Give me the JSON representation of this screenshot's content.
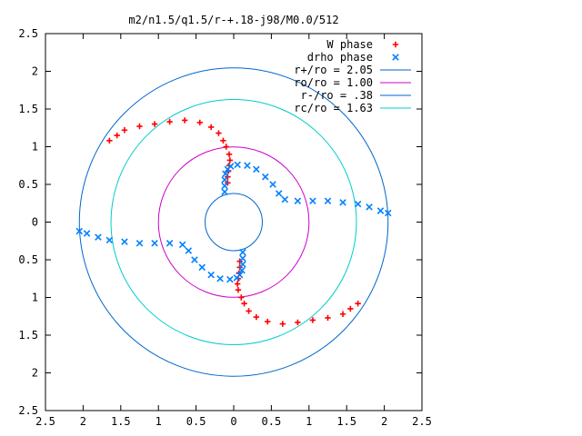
{
  "chart_data": {
    "type": "scatter",
    "title": "m2/n1.5/q1.5/r-+.18-j98/M0.0/512",
    "xlim": [
      -2.5,
      2.5
    ],
    "ylim": [
      -2.5,
      2.5
    ],
    "x_ticks": [
      -2.5,
      -2,
      -1.5,
      -1,
      -0.5,
      0,
      0.5,
      1,
      1.5,
      2,
      2.5
    ],
    "x_tick_labels": [
      "2.5",
      "2",
      "1.5",
      "1",
      "0.5",
      "0",
      "0.5",
      "1",
      "1.5",
      "2",
      "2.5"
    ],
    "y_ticks": [
      2.5,
      2,
      1.5,
      1,
      0.5,
      0,
      -0.5,
      -1,
      -1.5,
      -2,
      -2.5
    ],
    "y_tick_labels": [
      "2.5",
      "2",
      "1.5",
      "1",
      "0.5",
      "0",
      "0.5",
      "1",
      "1.5",
      "2",
      "2.5"
    ],
    "grid": false,
    "legend_position": "top-right",
    "series": [
      {
        "name": "W phase",
        "marker": "plus",
        "color": "#ff0000",
        "points": [
          [
            -0.08,
            0.52
          ],
          [
            -0.08,
            0.6
          ],
          [
            -0.07,
            0.68
          ],
          [
            -0.06,
            0.75
          ],
          [
            -0.05,
            0.82
          ],
          [
            -0.06,
            0.9
          ],
          [
            -0.1,
            1.0
          ],
          [
            -0.14,
            1.08
          ],
          [
            -0.2,
            1.18
          ],
          [
            -0.3,
            1.26
          ],
          [
            -0.45,
            1.32
          ],
          [
            -0.65,
            1.35
          ],
          [
            -0.85,
            1.33
          ],
          [
            -1.05,
            1.3
          ],
          [
            -1.25,
            1.27
          ],
          [
            -1.45,
            1.22
          ],
          [
            -1.55,
            1.15
          ],
          [
            -1.65,
            1.08
          ],
          [
            0.08,
            -0.52
          ],
          [
            0.08,
            -0.6
          ],
          [
            0.07,
            -0.68
          ],
          [
            0.06,
            -0.75
          ],
          [
            0.05,
            -0.82
          ],
          [
            0.06,
            -0.9
          ],
          [
            0.1,
            -1.0
          ],
          [
            0.14,
            -1.08
          ],
          [
            0.2,
            -1.18
          ],
          [
            0.3,
            -1.26
          ],
          [
            0.45,
            -1.32
          ],
          [
            0.65,
            -1.35
          ],
          [
            0.85,
            -1.33
          ],
          [
            1.05,
            -1.3
          ],
          [
            1.25,
            -1.27
          ],
          [
            1.45,
            -1.22
          ],
          [
            1.55,
            -1.15
          ],
          [
            1.65,
            -1.08
          ]
        ]
      },
      {
        "name": "drho phase",
        "marker": "cross",
        "color": "#0080ff",
        "points": [
          [
            -0.12,
            0.4
          ],
          [
            -0.12,
            0.48
          ],
          [
            -0.12,
            0.56
          ],
          [
            -0.11,
            0.64
          ],
          [
            -0.08,
            0.7
          ],
          [
            -0.04,
            0.74
          ],
          [
            0.05,
            0.76
          ],
          [
            0.18,
            0.75
          ],
          [
            0.3,
            0.7
          ],
          [
            0.42,
            0.6
          ],
          [
            0.52,
            0.5
          ],
          [
            0.6,
            0.38
          ],
          [
            0.68,
            0.3
          ],
          [
            0.85,
            0.28
          ],
          [
            1.05,
            0.28
          ],
          [
            1.25,
            0.28
          ],
          [
            1.45,
            0.26
          ],
          [
            1.65,
            0.24
          ],
          [
            1.8,
            0.2
          ],
          [
            1.95,
            0.15
          ],
          [
            2.05,
            0.12
          ],
          [
            0.12,
            -0.4
          ],
          [
            0.12,
            -0.48
          ],
          [
            0.12,
            -0.56
          ],
          [
            0.11,
            -0.64
          ],
          [
            0.08,
            -0.7
          ],
          [
            0.04,
            -0.74
          ],
          [
            -0.05,
            -0.76
          ],
          [
            -0.18,
            -0.75
          ],
          [
            -0.3,
            -0.7
          ],
          [
            -0.42,
            -0.6
          ],
          [
            -0.52,
            -0.5
          ],
          [
            -0.6,
            -0.38
          ],
          [
            -0.68,
            -0.3
          ],
          [
            -0.85,
            -0.28
          ],
          [
            -1.05,
            -0.28
          ],
          [
            -1.25,
            -0.28
          ],
          [
            -1.45,
            -0.26
          ],
          [
            -1.65,
            -0.24
          ],
          [
            -1.8,
            -0.2
          ],
          [
            -1.95,
            -0.15
          ],
          [
            -2.05,
            -0.12
          ]
        ]
      }
    ],
    "circles": [
      {
        "label": "r+/ro = 2.05",
        "radius": 2.05,
        "color": "#0066cc"
      },
      {
        "label": "ro/ro = 1.00",
        "radius": 1.0,
        "color": "#cc00cc"
      },
      {
        "label": "r-/ro = .38",
        "radius": 0.38,
        "color": "#0066cc"
      },
      {
        "label": "rc/ro = 1.63",
        "radius": 1.63,
        "color": "#00cccc"
      }
    ]
  }
}
